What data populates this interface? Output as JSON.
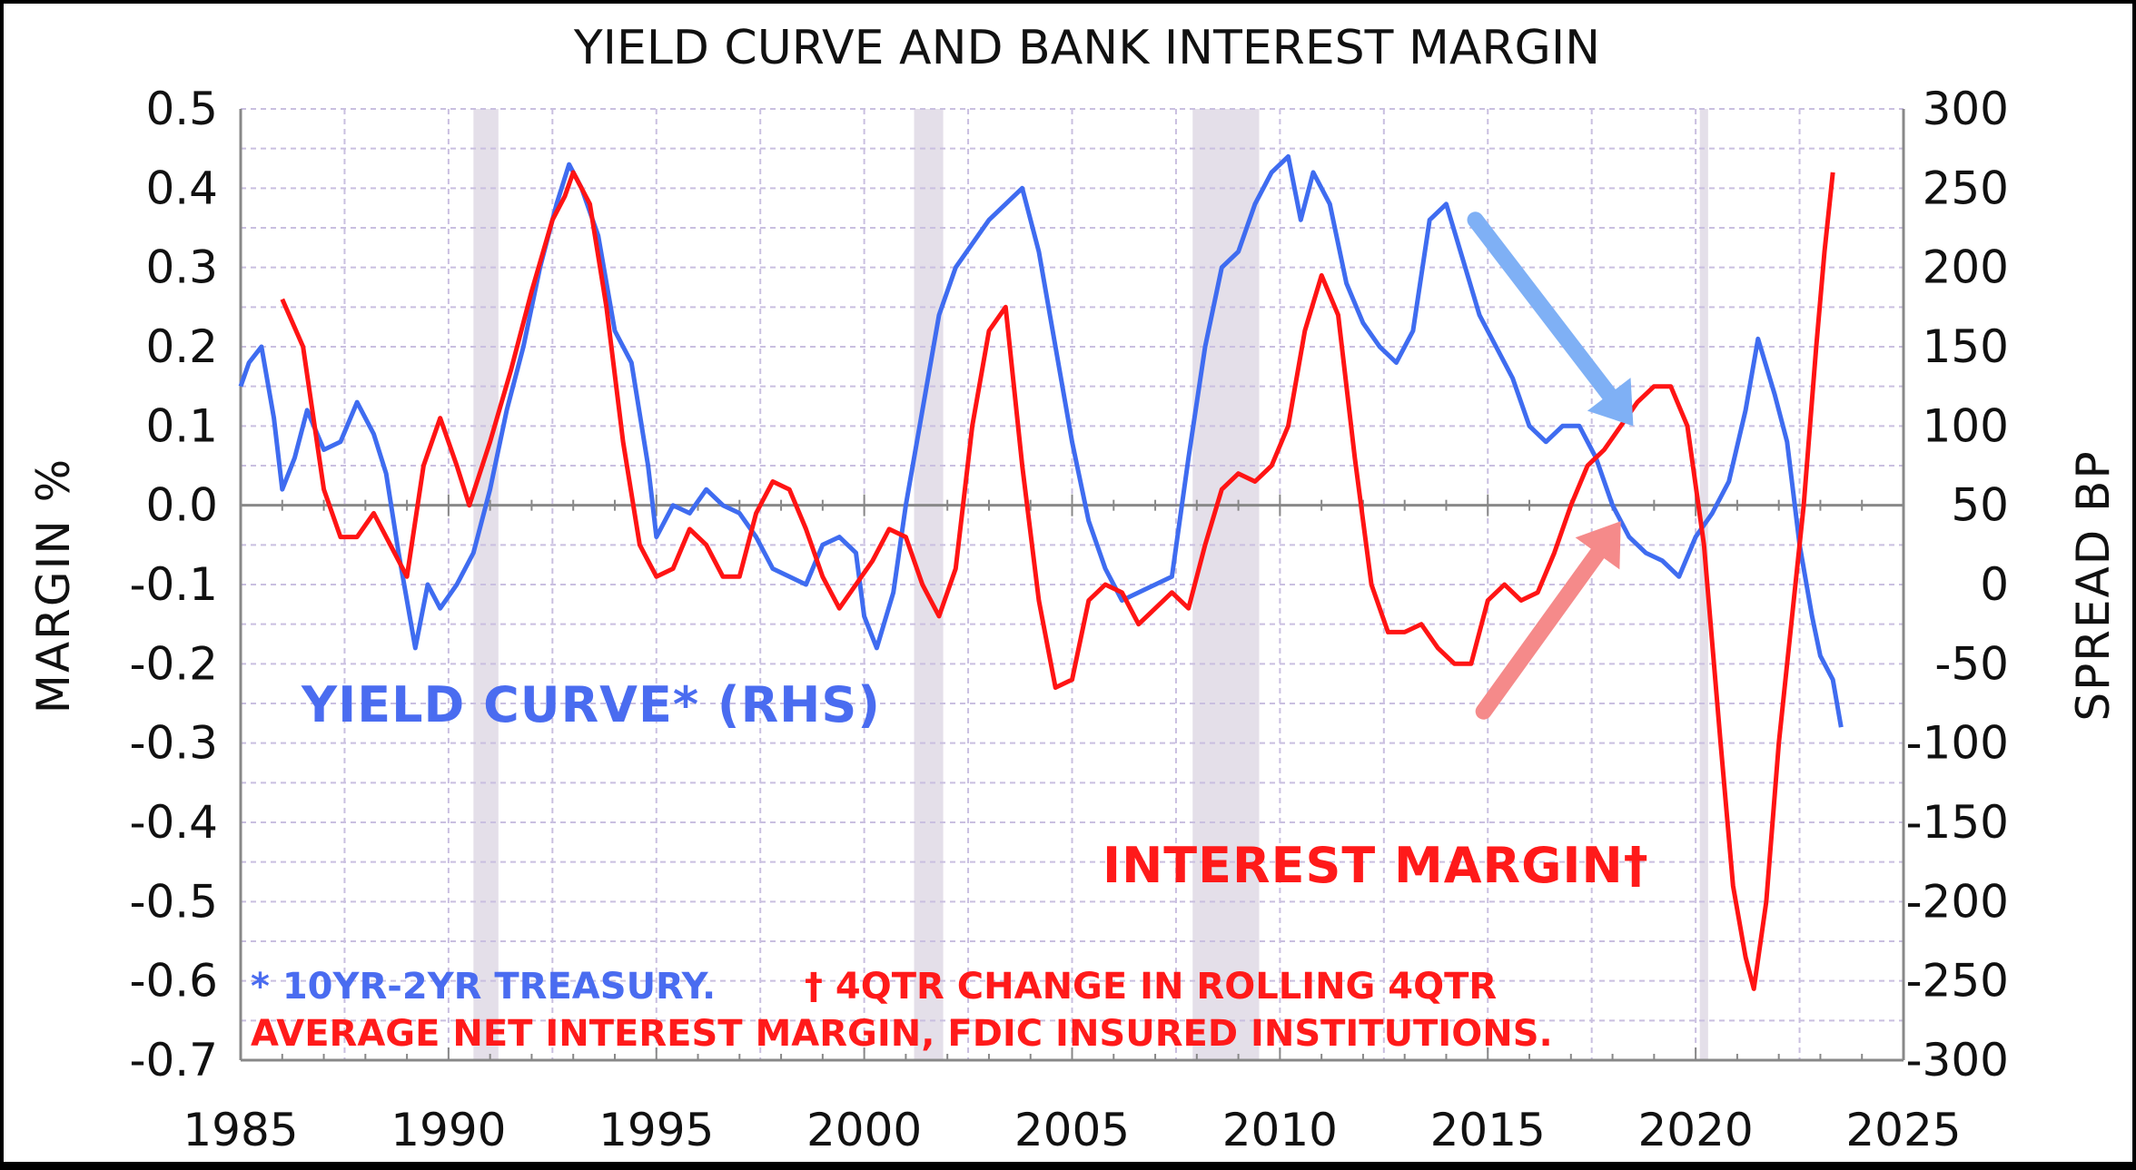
{
  "chart_data": {
    "type": "line",
    "title": "YIELD CURVE AND BANK INTEREST MARGIN",
    "ylabel_left": "MARGIN %",
    "ylabel_right": "SPREAD BP",
    "xlim": [
      1985,
      2025
    ],
    "ylim_left": [
      -0.7,
      0.5
    ],
    "ylim_right": [
      -300,
      300
    ],
    "x_ticks": [
      "1985",
      "1990",
      "1995",
      "2000",
      "2005",
      "2010",
      "2015",
      "2020",
      "2025"
    ],
    "y_left_ticks": [
      "0.5",
      "0.4",
      "0.3",
      "0.2",
      "0.1",
      "0.0",
      "-0.1",
      "-0.2",
      "-0.3",
      "-0.4",
      "-0.5",
      "-0.6",
      "-0.7"
    ],
    "y_right_ticks": [
      "300",
      "250",
      "200",
      "150",
      "100",
      "50",
      "0",
      "-50",
      "-100",
      "-150",
      "-200",
      "-250",
      "-300"
    ],
    "grid": true,
    "recessions": [
      [
        1990.6,
        1991.2
      ],
      [
        2001.2,
        2001.9
      ],
      [
        2007.9,
        2009.5
      ],
      [
        2020.1,
        2020.3
      ]
    ],
    "annotations": {
      "yield_label": "YIELD CURVE* (RHS)",
      "margin_label": "INTEREST MARGIN†",
      "footnote_1a": "* 10YR-2YR TREASURY.",
      "footnote_1b": "† 4QTR CHANGE IN ROLLING 4QTR",
      "footnote_2": "AVERAGE  NET INTEREST  MARGIN, FDIC INSURED INSTITUTIONS."
    },
    "arrows": [
      {
        "color": "#7fb0f5",
        "from": [
          2014.7,
          230
        ],
        "to": [
          2018.5,
          100
        ]
      },
      {
        "color": "#f58a8a",
        "from": [
          2014.9,
          -80
        ],
        "to": [
          2018.2,
          40
        ]
      }
    ],
    "series": [
      {
        "name": "YIELD CURVE* (RHS)",
        "axis": "right",
        "color": "#3f6cf0",
        "points": [
          [
            1985.0,
            125
          ],
          [
            1985.2,
            140
          ],
          [
            1985.5,
            150
          ],
          [
            1985.8,
            105
          ],
          [
            1986.0,
            60
          ],
          [
            1986.3,
            80
          ],
          [
            1986.6,
            110
          ],
          [
            1987.0,
            85
          ],
          [
            1987.4,
            90
          ],
          [
            1987.8,
            115
          ],
          [
            1988.2,
            95
          ],
          [
            1988.5,
            70
          ],
          [
            1988.8,
            20
          ],
          [
            1989.2,
            -40
          ],
          [
            1989.5,
            0
          ],
          [
            1989.8,
            -15
          ],
          [
            1990.2,
            0
          ],
          [
            1990.6,
            20
          ],
          [
            1991.0,
            60
          ],
          [
            1991.4,
            110
          ],
          [
            1991.8,
            150
          ],
          [
            1992.2,
            200
          ],
          [
            1992.6,
            240
          ],
          [
            1992.9,
            265
          ],
          [
            1993.2,
            250
          ],
          [
            1993.6,
            220
          ],
          [
            1994.0,
            160
          ],
          [
            1994.4,
            140
          ],
          [
            1994.8,
            75
          ],
          [
            1995.0,
            30
          ],
          [
            1995.4,
            50
          ],
          [
            1995.8,
            45
          ],
          [
            1996.2,
            60
          ],
          [
            1996.6,
            50
          ],
          [
            1997.0,
            45
          ],
          [
            1997.4,
            30
          ],
          [
            1997.8,
            10
          ],
          [
            1998.2,
            5
          ],
          [
            1998.6,
            0
          ],
          [
            1999.0,
            25
          ],
          [
            1999.4,
            30
          ],
          [
            1999.8,
            20
          ],
          [
            2000.0,
            -20
          ],
          [
            2000.3,
            -40
          ],
          [
            2000.7,
            -5
          ],
          [
            2001.0,
            50
          ],
          [
            2001.4,
            110
          ],
          [
            2001.8,
            170
          ],
          [
            2002.2,
            200
          ],
          [
            2002.6,
            215
          ],
          [
            2003.0,
            230
          ],
          [
            2003.4,
            240
          ],
          [
            2003.8,
            250
          ],
          [
            2004.2,
            210
          ],
          [
            2004.6,
            150
          ],
          [
            2005.0,
            90
          ],
          [
            2005.4,
            40
          ],
          [
            2005.8,
            10
          ],
          [
            2006.2,
            -10
          ],
          [
            2006.6,
            -5
          ],
          [
            2007.0,
            0
          ],
          [
            2007.4,
            5
          ],
          [
            2007.8,
            80
          ],
          [
            2008.2,
            150
          ],
          [
            2008.6,
            200
          ],
          [
            2009.0,
            210
          ],
          [
            2009.4,
            240
          ],
          [
            2009.8,
            260
          ],
          [
            2010.2,
            270
          ],
          [
            2010.5,
            230
          ],
          [
            2010.8,
            260
          ],
          [
            2011.2,
            240
          ],
          [
            2011.6,
            190
          ],
          [
            2012.0,
            165
          ],
          [
            2012.4,
            150
          ],
          [
            2012.8,
            140
          ],
          [
            2013.2,
            160
          ],
          [
            2013.6,
            230
          ],
          [
            2014.0,
            240
          ],
          [
            2014.4,
            205
          ],
          [
            2014.8,
            170
          ],
          [
            2015.2,
            150
          ],
          [
            2015.6,
            130
          ],
          [
            2016.0,
            100
          ],
          [
            2016.4,
            90
          ],
          [
            2016.8,
            100
          ],
          [
            2017.2,
            100
          ],
          [
            2017.6,
            80
          ],
          [
            2018.0,
            50
          ],
          [
            2018.4,
            30
          ],
          [
            2018.8,
            20
          ],
          [
            2019.2,
            15
          ],
          [
            2019.6,
            5
          ],
          [
            2020.0,
            30
          ],
          [
            2020.4,
            45
          ],
          [
            2020.8,
            65
          ],
          [
            2021.2,
            110
          ],
          [
            2021.5,
            155
          ],
          [
            2021.9,
            120
          ],
          [
            2022.2,
            90
          ],
          [
            2022.5,
            25
          ],
          [
            2022.8,
            -20
          ],
          [
            2023.0,
            -45
          ],
          [
            2023.3,
            -60
          ],
          [
            2023.5,
            -90
          ]
        ]
      },
      {
        "name": "INTEREST MARGIN†",
        "axis": "left",
        "color": "#ff1414",
        "points": [
          [
            1986.0,
            0.26
          ],
          [
            1986.5,
            0.2
          ],
          [
            1987.0,
            0.02
          ],
          [
            1987.4,
            -0.04
          ],
          [
            1987.8,
            -0.04
          ],
          [
            1988.2,
            -0.01
          ],
          [
            1988.6,
            -0.05
          ],
          [
            1989.0,
            -0.09
          ],
          [
            1989.4,
            0.05
          ],
          [
            1989.8,
            0.11
          ],
          [
            1990.2,
            0.05
          ],
          [
            1990.5,
            0.0
          ],
          [
            1991.0,
            0.08
          ],
          [
            1991.5,
            0.17
          ],
          [
            1992.0,
            0.27
          ],
          [
            1992.5,
            0.36
          ],
          [
            1992.8,
            0.39
          ],
          [
            1993.0,
            0.42
          ],
          [
            1993.4,
            0.38
          ],
          [
            1993.8,
            0.25
          ],
          [
            1994.2,
            0.08
          ],
          [
            1994.6,
            -0.05
          ],
          [
            1995.0,
            -0.09
          ],
          [
            1995.4,
            -0.08
          ],
          [
            1995.8,
            -0.03
          ],
          [
            1996.2,
            -0.05
          ],
          [
            1996.6,
            -0.09
          ],
          [
            1997.0,
            -0.09
          ],
          [
            1997.4,
            -0.01
          ],
          [
            1997.8,
            0.03
          ],
          [
            1998.2,
            0.02
          ],
          [
            1998.6,
            -0.03
          ],
          [
            1999.0,
            -0.09
          ],
          [
            1999.4,
            -0.13
          ],
          [
            1999.8,
            -0.1
          ],
          [
            2000.2,
            -0.07
          ],
          [
            2000.6,
            -0.03
          ],
          [
            2001.0,
            -0.04
          ],
          [
            2001.4,
            -0.1
          ],
          [
            2001.8,
            -0.14
          ],
          [
            2002.2,
            -0.08
          ],
          [
            2002.6,
            0.1
          ],
          [
            2003.0,
            0.22
          ],
          [
            2003.4,
            0.25
          ],
          [
            2003.8,
            0.05
          ],
          [
            2004.2,
            -0.12
          ],
          [
            2004.6,
            -0.23
          ],
          [
            2005.0,
            -0.22
          ],
          [
            2005.4,
            -0.12
          ],
          [
            2005.8,
            -0.1
          ],
          [
            2006.2,
            -0.11
          ],
          [
            2006.6,
            -0.15
          ],
          [
            2007.0,
            -0.13
          ],
          [
            2007.4,
            -0.11
          ],
          [
            2007.8,
            -0.13
          ],
          [
            2008.2,
            -0.05
          ],
          [
            2008.6,
            0.02
          ],
          [
            2009.0,
            0.04
          ],
          [
            2009.4,
            0.03
          ],
          [
            2009.8,
            0.05
          ],
          [
            2010.2,
            0.1
          ],
          [
            2010.6,
            0.22
          ],
          [
            2011.0,
            0.29
          ],
          [
            2011.4,
            0.24
          ],
          [
            2011.8,
            0.06
          ],
          [
            2012.2,
            -0.1
          ],
          [
            2012.6,
            -0.16
          ],
          [
            2013.0,
            -0.16
          ],
          [
            2013.4,
            -0.15
          ],
          [
            2013.8,
            -0.18
          ],
          [
            2014.2,
            -0.2
          ],
          [
            2014.6,
            -0.2
          ],
          [
            2015.0,
            -0.12
          ],
          [
            2015.4,
            -0.1
          ],
          [
            2015.8,
            -0.12
          ],
          [
            2016.2,
            -0.11
          ],
          [
            2016.6,
            -0.06
          ],
          [
            2017.0,
            0.0
          ],
          [
            2017.4,
            0.05
          ],
          [
            2017.8,
            0.07
          ],
          [
            2018.2,
            0.1
          ],
          [
            2018.6,
            0.13
          ],
          [
            2019.0,
            0.15
          ],
          [
            2019.4,
            0.15
          ],
          [
            2019.8,
            0.1
          ],
          [
            2020.2,
            -0.05
          ],
          [
            2020.6,
            -0.3
          ],
          [
            2020.9,
            -0.48
          ],
          [
            2021.2,
            -0.57
          ],
          [
            2021.4,
            -0.61
          ],
          [
            2021.7,
            -0.5
          ],
          [
            2022.0,
            -0.3
          ],
          [
            2022.3,
            -0.15
          ],
          [
            2022.6,
            0.0
          ],
          [
            2022.9,
            0.2
          ],
          [
            2023.1,
            0.32
          ],
          [
            2023.3,
            0.42
          ]
        ]
      }
    ]
  }
}
